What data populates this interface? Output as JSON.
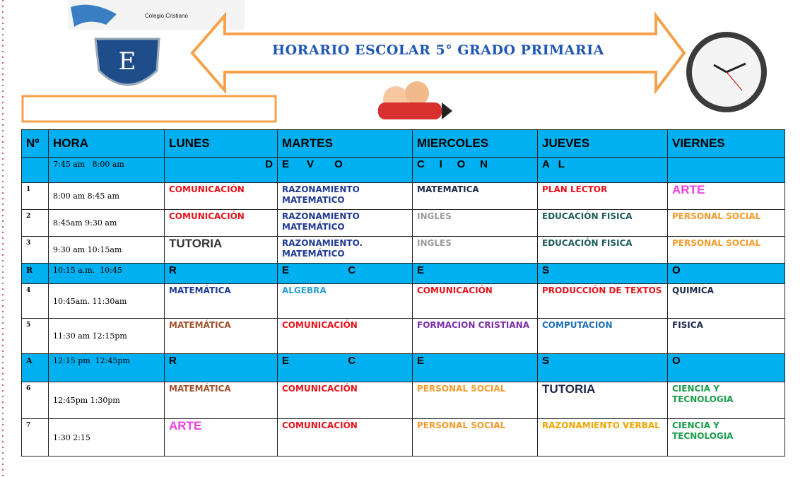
{
  "header": {
    "school": "Colegio Cristiano",
    "title": "HORARIO ESCOLAR  5° GRADO PRIMARIA"
  },
  "table": {
    "columns": [
      "Nº",
      "HORA",
      "LUNES",
      "MARTES",
      "MIERCOLES",
      "JUEVES",
      "VIERNES"
    ],
    "rows": [
      {
        "num": null,
        "hora": "7:45 am   8:00 am",
        "band": true,
        "cells": [
          {
            "text": "D",
            "color": "#000000"
          },
          {
            "text": "E      V       O",
            "color": "#000000"
          },
          {
            "text": "C     I     O     N",
            "color": "#000000"
          },
          {
            "text": "A   L",
            "color": "#000000"
          },
          null
        ]
      },
      {
        "num": "1",
        "hora": "8:00 am   8:45 am",
        "band": false,
        "cells": [
          {
            "text": "COMUNICACIÓN",
            "color": "#e8131b"
          },
          {
            "text": "RAZONAMIENTO MATEMATICO",
            "color": "#1f3a93"
          },
          {
            "text": "MATEMATICA",
            "color": "#1c2a4a"
          },
          {
            "text": "PLAN LECTOR",
            "color": "#e8131b"
          },
          {
            "text": "ARTE",
            "color": "#f03ee0"
          }
        ]
      },
      {
        "num": "2",
        "hora": "8:45am   9:30 am",
        "band": false,
        "cells": [
          {
            "text": "COMUNICACIÓN",
            "color": "#e8131b"
          },
          {
            "text": "RAZONAMIENTO MATEMÁTICO",
            "color": "#1f3a93"
          },
          {
            "text": "INGLES",
            "color": "#9a9a9a"
          },
          {
            "text": "EDUCACIÓN FISICA",
            "color": "#1d5c5c"
          },
          {
            "text": "PERSONAL SOCIAL",
            "color": "#f59a2a"
          }
        ]
      },
      {
        "num": "3",
        "hora": "9:30 am  10:15am",
        "band": false,
        "cells": [
          {
            "text": "TUTORIA",
            "color": "#333333"
          },
          {
            "text": "RAZONAMIENTO. MATEMÁTICO",
            "color": "#1f3a93"
          },
          {
            "text": "INGLES",
            "color": "#9a9a9a"
          },
          {
            "text": "EDUCACIÓN FISICA",
            "color": "#1d5c5c"
          },
          {
            "text": "PERSONAL SOCIAL",
            "color": "#f59a2a"
          }
        ]
      },
      {
        "num": "R",
        "hora": "10:15 a.m.  10:45",
        "band": true,
        "cells": [
          {
            "text": "R",
            "color": "#000000"
          },
          {
            "text": "E                    C",
            "color": "#000000"
          },
          {
            "text": "E",
            "color": "#000000"
          },
          {
            "text": "S",
            "color": "#000000"
          },
          {
            "text": "O",
            "color": "#000000"
          }
        ]
      },
      {
        "num": "4",
        "hora": "10:45am.  11:30am",
        "band": false,
        "cells": [
          {
            "text": "MATEMÁTICA",
            "color": "#1f3a93"
          },
          {
            "text": "ALGEBRA",
            "color": "#2b9fd8"
          },
          {
            "text": "COMUNICACIÓN",
            "color": "#e8131b"
          },
          {
            "text": "PRODUCCIÓN DE TEXTOS",
            "color": "#e8131b"
          },
          {
            "text": "QUIMICA",
            "color": "#1c2a4a"
          }
        ]
      },
      {
        "num": "5",
        "hora": "11:30 am  12:15pm",
        "band": false,
        "cells": [
          {
            "text": "MATEMÁTICA",
            "color": "#a0522d"
          },
          {
            "text": "COMUNICACIÓN",
            "color": "#e8131b"
          },
          {
            "text": "FORMACION CRISTIANA",
            "color": "#7b2fa8"
          },
          {
            "text": "COMPUTACION",
            "color": "#1f6fb5"
          },
          {
            "text": "FISICA",
            "color": "#1c2a4a"
          }
        ]
      },
      {
        "num": "A",
        "hora": "12:15 pm  12:45pm",
        "band": true,
        "cells": [
          {
            "text": "R",
            "color": "#000000"
          },
          {
            "text": "E                    C",
            "color": "#000000"
          },
          {
            "text": "E",
            "color": "#000000"
          },
          {
            "text": "S",
            "color": "#000000"
          },
          {
            "text": "O",
            "color": "#000000"
          }
        ]
      },
      {
        "num": "6",
        "hora": "12:45pm  1:30pm",
        "band": false,
        "cells": [
          {
            "text": "MATEMÁTICA",
            "color": "#a0522d"
          },
          {
            "text": "COMUNICACIÓN",
            "color": "#e8131b"
          },
          {
            "text": "PERSONAL SOCIAL",
            "color": "#f59a2a"
          },
          {
            "text": "TUTORIA",
            "color": "#1c2a4a"
          },
          {
            "text": "CIENCIA Y TECNOLOGIA",
            "color": "#1a9e4a"
          }
        ]
      },
      {
        "num": "7",
        "hora": "1:30  2:15",
        "band": false,
        "cells": [
          {
            "text": "ARTE",
            "color": "#f03ee0"
          },
          {
            "text": "COMUNICACIÓN",
            "color": "#e8131b"
          },
          {
            "text": "PERSONAL SOCIAL",
            "color": "#f59a2a"
          },
          {
            "text": "RAZONAMIENTO VERBAL",
            "color": "#f0a500"
          },
          {
            "text": "CIENCIA Y TECNOLOGIA",
            "color": "#1a9e4a"
          }
        ]
      }
    ]
  }
}
